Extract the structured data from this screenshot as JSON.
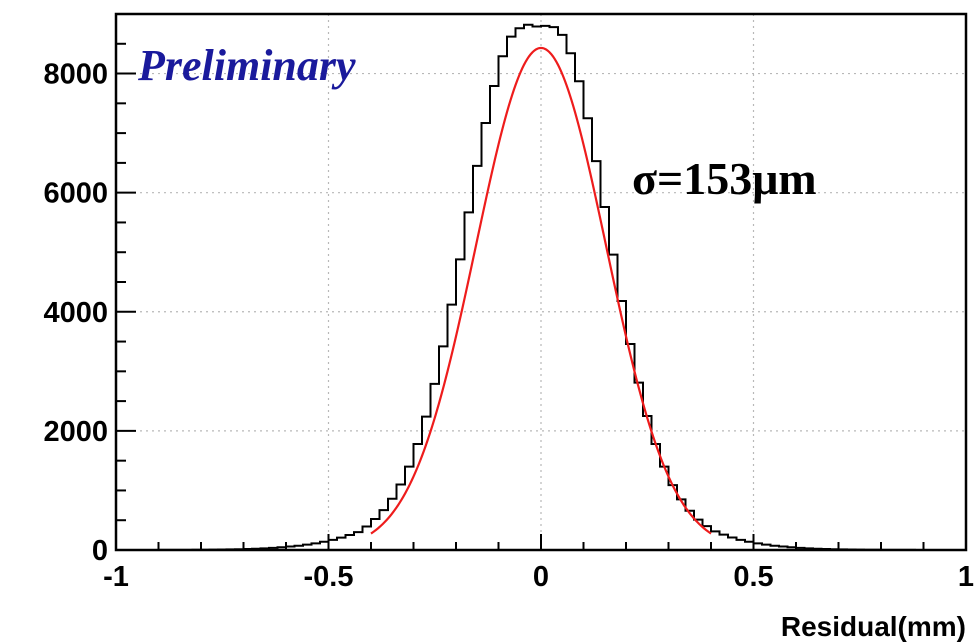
{
  "chart_data": {
    "type": "histogram",
    "title": "",
    "xlabel": "Residual(mm)",
    "ylabel": "",
    "xlim": [
      -1,
      1
    ],
    "ylim": [
      0,
      9000
    ],
    "xticks": [
      -1,
      -0.5,
      0,
      0.5,
      1
    ],
    "xtick_labels": [
      "-1",
      "-0.5",
      "0",
      "0.5",
      "1"
    ],
    "yticks": [
      0,
      2000,
      4000,
      6000,
      8000
    ],
    "ytick_labels": [
      "0",
      "2000",
      "4000",
      "6000",
      "8000"
    ],
    "grid": true,
    "bin_width": 0.02,
    "annotations": {
      "preliminary": "Preliminary",
      "sigma": "σ=153μm"
    },
    "histogram": {
      "bin_centers": [
        -0.99,
        -0.97,
        -0.95,
        -0.93,
        -0.91,
        -0.89,
        -0.87,
        -0.85,
        -0.83,
        -0.81,
        -0.79,
        -0.77,
        -0.75,
        -0.73,
        -0.71,
        -0.69,
        -0.67,
        -0.65,
        -0.63,
        -0.61,
        -0.59,
        -0.57,
        -0.55,
        -0.53,
        -0.51,
        -0.49,
        -0.47,
        -0.45,
        -0.43,
        -0.41,
        -0.39,
        -0.37,
        -0.35,
        -0.33,
        -0.31,
        -0.29,
        -0.27,
        -0.25,
        -0.23,
        -0.21,
        -0.19,
        -0.17,
        -0.15,
        -0.13,
        -0.11,
        -0.09,
        -0.07,
        -0.05,
        -0.03,
        -0.01,
        0.01,
        0.03,
        0.05,
        0.07,
        0.09,
        0.11,
        0.13,
        0.15,
        0.17,
        0.19,
        0.21,
        0.23,
        0.25,
        0.27,
        0.29,
        0.31,
        0.33,
        0.35,
        0.37,
        0.39,
        0.41,
        0.43,
        0.45,
        0.47,
        0.49,
        0.51,
        0.53,
        0.55,
        0.57,
        0.59,
        0.61,
        0.63,
        0.65,
        0.67,
        0.69,
        0.71,
        0.73,
        0.75,
        0.77,
        0.79,
        0.81,
        0.83,
        0.85,
        0.87,
        0.89,
        0.91,
        0.93,
        0.95,
        0.97,
        0.99
      ],
      "counts": [
        1,
        1,
        1,
        1,
        1,
        2,
        2,
        2,
        3,
        4,
        5,
        6,
        8,
        10,
        13,
        17,
        22,
        28,
        36,
        46,
        58,
        72,
        90,
        112,
        138,
        170,
        208,
        252,
        300,
        395,
        520,
        670,
        860,
        1100,
        1400,
        1780,
        2240,
        2790,
        3420,
        4120,
        4880,
        5670,
        6450,
        7170,
        7790,
        8290,
        8620,
        8760,
        8820,
        8790,
        8800,
        8780,
        8650,
        8340,
        7870,
        7250,
        6530,
        5760,
        4960,
        4180,
        3460,
        2810,
        2250,
        1780,
        1400,
        1090,
        850,
        660,
        510,
        400,
        312,
        258,
        210,
        170,
        138,
        112,
        90,
        72,
        58,
        46,
        36,
        28,
        22,
        17,
        13,
        10,
        8,
        6,
        5,
        4,
        3,
        2,
        2,
        2,
        1,
        1,
        1,
        1,
        1,
        1
      ]
    },
    "series": [
      {
        "type": "histogram",
        "color": "#000000"
      },
      {
        "type": "gaussian_fit",
        "color": "#ee1c1c",
        "mean": 0.0,
        "sigma_mm": 0.153,
        "amplitude": 8430,
        "range": [
          -0.4,
          0.4
        ]
      }
    ]
  }
}
